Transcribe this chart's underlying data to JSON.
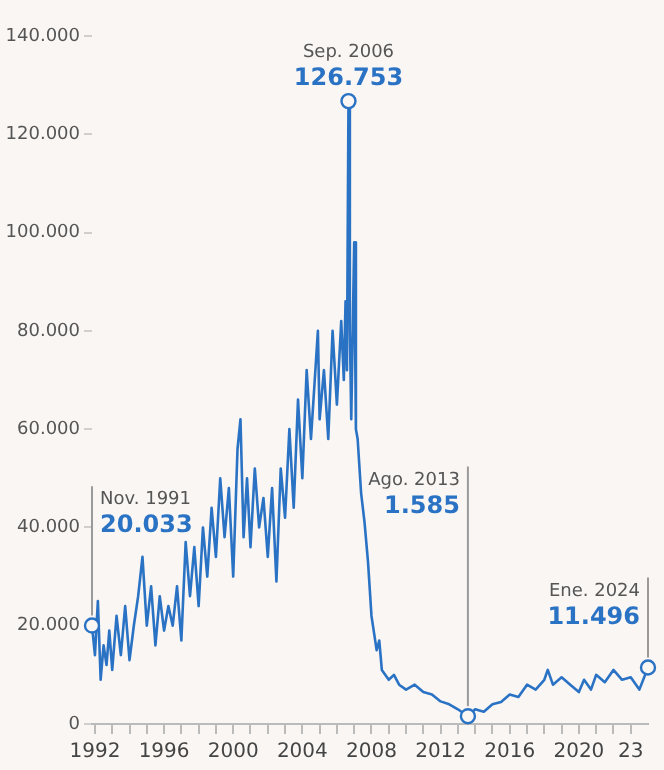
{
  "chart_data": {
    "type": "line",
    "color": "#2a72c4",
    "series": [
      {
        "type": "line",
        "color": "#2a72c4",
        "marker": "none",
        "x": [
          1991.83,
          1992.0,
          1992.17,
          1992.33,
          1992.5,
          1992.67,
          1992.83,
          1993.0,
          1993.25,
          1993.5,
          1993.75,
          1994.0,
          1994.25,
          1994.5,
          1994.75,
          1995.0,
          1995.25,
          1995.5,
          1995.75,
          1996.0,
          1996.25,
          1996.5,
          1996.75,
          1997.0,
          1997.25,
          1997.5,
          1997.75,
          1998.0,
          1998.25,
          1998.5,
          1998.75,
          1999.0,
          1999.25,
          1999.5,
          1999.75,
          2000.0,
          2000.25,
          2000.42,
          2000.6,
          2000.8,
          2001.0,
          2001.25,
          2001.5,
          2001.75,
          2002.0,
          2002.25,
          2002.5,
          2002.75,
          2003.0,
          2003.25,
          2003.5,
          2003.75,
          2004.0,
          2004.25,
          2004.5,
          2004.9,
          2005.0,
          2005.25,
          2005.5,
          2005.75,
          2006.0,
          2006.25,
          2006.4,
          2006.5,
          2006.58,
          2006.67,
          2006.75,
          2006.83,
          2007.0,
          2007.1,
          2007.2,
          2007.4,
          2007.6,
          2007.8,
          2008.0,
          2008.3,
          2008.45,
          2008.6,
          2009.0,
          2009.3,
          2009.6,
          2010.0,
          2010.5,
          2011.0,
          2011.5,
          2012.0,
          2012.5,
          2013.0,
          2013.58,
          2014.0,
          2014.5,
          2015.0,
          2015.5,
          2016.0,
          2016.5,
          2017.0,
          2017.5,
          2018.0,
          2018.2,
          2018.5,
          2019.0,
          2019.5,
          2020.0,
          2020.3,
          2020.7,
          2021.0,
          2021.5,
          2022.0,
          2022.5,
          2023.0,
          2023.5,
          2024.0
        ],
        "values": [
          20033,
          14000,
          25000,
          9000,
          16000,
          12000,
          19000,
          11000,
          22000,
          14000,
          24000,
          13000,
          20000,
          26000,
          34000,
          20000,
          28000,
          16000,
          26000,
          19000,
          24000,
          20000,
          28000,
          17000,
          37000,
          26000,
          36000,
          24000,
          40000,
          30000,
          44000,
          34000,
          50000,
          38000,
          48000,
          30000,
          56000,
          62000,
          38000,
          50000,
          36000,
          52000,
          40000,
          46000,
          34000,
          48000,
          29000,
          52000,
          42000,
          60000,
          44000,
          66000,
          50000,
          72000,
          58000,
          80000,
          62000,
          72000,
          58000,
          80000,
          65000,
          82000,
          70000,
          86000,
          72000,
          126753,
          80000,
          62000,
          98000,
          60000,
          58000,
          47000,
          41000,
          33000,
          22000,
          15000,
          17000,
          11000,
          9000,
          10000,
          8000,
          7000,
          8000,
          6500,
          6000,
          4600,
          4000,
          3000,
          1585,
          3000,
          2500,
          4000,
          4500,
          6000,
          5500,
          8000,
          7000,
          9000,
          11000,
          8000,
          9500,
          8000,
          6500,
          9000,
          7000,
          10000,
          8500,
          11000,
          9000,
          9500,
          7000,
          11496
        ]
      },
      {
        "type": "scatter",
        "color": "#2a72c4",
        "marker": "circle",
        "x": [
          1991.83,
          2006.67,
          2013.58,
          2024.0
        ],
        "values": [
          20033,
          126753,
          1585,
          11496
        ]
      }
    ],
    "xlim": [
      1991.83,
      2024.0
    ],
    "xticks": [
      {
        "value": 1992,
        "label": "1992"
      },
      {
        "value": 1993,
        "label": null
      },
      {
        "value": 1994,
        "label": null
      },
      {
        "value": 1995,
        "label": null
      },
      {
        "value": 1996,
        "label": "1996"
      },
      {
        "value": 1997,
        "label": null
      },
      {
        "value": 1998,
        "label": null
      },
      {
        "value": 1999,
        "label": null
      },
      {
        "value": 2000,
        "label": "2000"
      },
      {
        "value": 2001,
        "label": null
      },
      {
        "value": 2002,
        "label": null
      },
      {
        "value": 2003,
        "label": null
      },
      {
        "value": 2004,
        "label": "2004"
      },
      {
        "value": 2005,
        "label": null
      },
      {
        "value": 2006,
        "label": null
      },
      {
        "value": 2007,
        "label": null
      },
      {
        "value": 2008,
        "label": "2008"
      },
      {
        "value": 2009,
        "label": null
      },
      {
        "value": 2010,
        "label": null
      },
      {
        "value": 2011,
        "label": null
      },
      {
        "value": 2012,
        "label": "2012"
      },
      {
        "value": 2013,
        "label": null
      },
      {
        "value": 2014,
        "label": null
      },
      {
        "value": 2015,
        "label": null
      },
      {
        "value": 2016,
        "label": "2016"
      },
      {
        "value": 2017,
        "label": null
      },
      {
        "value": 2018,
        "label": null
      },
      {
        "value": 2019,
        "label": null
      },
      {
        "value": 2020,
        "label": "2020"
      },
      {
        "value": 2021,
        "label": null
      },
      {
        "value": 2022,
        "label": null
      },
      {
        "value": 2023,
        "label": "23"
      }
    ],
    "ylim": [
      0,
      140000
    ],
    "yticks": [
      {
        "value": 0,
        "label": "0"
      },
      {
        "value": 20000,
        "label": "20.000"
      },
      {
        "value": 40000,
        "label": "40.000"
      },
      {
        "value": 60000,
        "label": "60.000"
      },
      {
        "value": 80000,
        "label": "80.000"
      },
      {
        "value": 100000,
        "label": "100.000"
      },
      {
        "value": 120000,
        "label": "120.000"
      },
      {
        "value": 140000,
        "label": "140.000"
      }
    ],
    "legend": false,
    "line_style": "solid",
    "annotations": [
      {
        "text": "Nov. 1991",
        "x": 1991.83,
        "y": 20033
      },
      {
        "text": "20.033",
        "x": 1991.83,
        "y": 20033
      },
      {
        "text": "Sep. 2006",
        "x": 2006.67,
        "y": 126753
      },
      {
        "text": "126.753",
        "x": 2006.67,
        "y": 126753
      },
      {
        "text": "Ago. 2013",
        "x": 2013.58,
        "y": 1585
      },
      {
        "text": "1.585",
        "x": 2013.58,
        "y": 1585
      },
      {
        "text": "Ene. 2024",
        "x": 2024.0,
        "y": 11496
      },
      {
        "text": "11.496",
        "x": 2024.0,
        "y": 11496
      }
    ]
  }
}
